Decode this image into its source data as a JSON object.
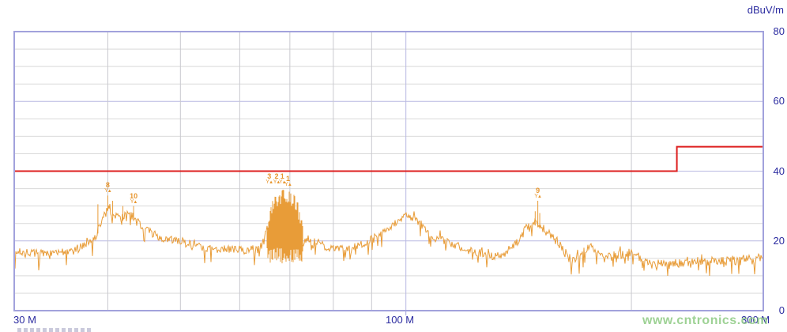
{
  "watermark": "www.cntronics.com",
  "chart_data": {
    "type": "line",
    "title": "",
    "xlabel": "",
    "ylabel": "dBuV/m",
    "legend": "none",
    "x_axis": {
      "scale": "log",
      "unit": "MHz",
      "min_mhz": 30,
      "max_mhz": 300,
      "tick_labels": [
        "30 M",
        "100 M",
        "300 M"
      ],
      "gridlines_mhz": [
        40,
        50,
        60,
        70,
        80,
        90,
        100,
        200
      ],
      "major_gridlines_mhz": [
        100
      ]
    },
    "y_axis": {
      "min": 0,
      "max": 80,
      "major_step": 20,
      "minor_step": 5,
      "tick_values": [
        80,
        60,
        40,
        20,
        0
      ],
      "tick_labels": [
        "80",
        "60",
        "40",
        "20",
        "0"
      ]
    },
    "limit_line": {
      "name": "emission-limit",
      "color": "#dd1f1f",
      "segments": [
        {
          "from_mhz": 30,
          "to_mhz": 230,
          "level_dbuv_m": 40
        },
        {
          "from_mhz": 230,
          "to_mhz": 300,
          "level_dbuv_m": 47
        }
      ]
    },
    "trace": {
      "name": "measured-emission",
      "color": "#e89c38",
      "points_mhz_db_noise": [
        [
          30,
          17,
          1.0
        ],
        [
          33,
          16.3,
          1.1
        ],
        [
          36,
          17,
          1.3
        ],
        [
          38.5,
          21.5,
          1.5
        ],
        [
          40,
          29.5,
          1.6
        ],
        [
          41.5,
          26.5,
          1.5
        ],
        [
          43,
          27.5,
          1.4
        ],
        [
          44.5,
          23.5,
          1.3
        ],
        [
          47,
          21,
          1.2
        ],
        [
          50,
          20,
          1.1
        ],
        [
          54,
          17.7,
          1.1
        ],
        [
          58,
          17.6,
          1.1
        ],
        [
          61,
          17.4,
          1.2
        ],
        [
          63.5,
          17.3,
          1.5
        ],
        [
          65,
          21,
          2.0
        ],
        [
          67,
          23.5,
          2.2
        ],
        [
          69,
          23.5,
          2.2
        ],
        [
          71,
          22.5,
          2.2
        ],
        [
          73,
          20.5,
          2.0
        ],
        [
          75,
          19.8,
          1.4
        ],
        [
          78,
          18.5,
          1.2
        ],
        [
          81,
          17.5,
          1.1
        ],
        [
          85,
          18,
          1.1
        ],
        [
          89,
          20,
          1.1
        ],
        [
          93,
          22,
          1.1
        ],
        [
          96,
          24.5,
          1.1
        ],
        [
          99,
          27,
          1.0
        ],
        [
          101,
          27.2,
          1.0
        ],
        [
          104,
          25.5,
          1.1
        ],
        [
          109,
          21,
          1.1
        ],
        [
          114,
          19.5,
          1.1
        ],
        [
          118,
          18.5,
          1.2
        ],
        [
          122,
          17,
          1.2
        ],
        [
          127,
          16.2,
          1.2
        ],
        [
          131,
          15.5,
          1.2
        ],
        [
          136,
          16.5,
          1.3
        ],
        [
          140,
          19,
          1.3
        ],
        [
          144,
          23,
          1.4
        ],
        [
          147,
          24.5,
          1.5
        ],
        [
          149,
          25.5,
          1.5
        ],
        [
          151,
          24.5,
          1.4
        ],
        [
          154,
          22.5,
          1.3
        ],
        [
          157,
          21.5,
          1.2
        ],
        [
          161,
          18.5,
          1.3
        ],
        [
          165,
          15,
          1.3
        ],
        [
          168,
          14.2,
          1.3
        ],
        [
          172,
          16.5,
          1.2
        ],
        [
          176,
          19,
          1.2
        ],
        [
          180,
          17.5,
          1.3
        ],
        [
          184,
          15,
          1.3
        ],
        [
          188,
          15.5,
          1.3
        ],
        [
          193,
          16.2,
          1.3
        ],
        [
          200,
          16.5,
          1.3
        ],
        [
          204,
          15.5,
          1.4
        ],
        [
          207,
          14.3,
          1.4
        ],
        [
          214,
          13,
          1.4
        ],
        [
          221,
          13.2,
          1.4
        ],
        [
          228,
          13.5,
          1.4
        ],
        [
          240,
          13.8,
          1.5
        ],
        [
          252,
          14,
          1.5
        ],
        [
          265,
          14.2,
          1.5
        ],
        [
          280,
          14.5,
          1.5
        ],
        [
          300,
          14.8,
          1.5
        ]
      ]
    },
    "burst_cluster": {
      "from_mhz": 65.3,
      "to_mhz": 72.8,
      "peak_top_db": 35.5,
      "edge_top_db": 26,
      "bottom_db": 13.5
    },
    "spikes_mhz_top_db": [
      [
        38.8,
        30.5
      ],
      [
        40,
        33
      ],
      [
        40.6,
        31.5
      ],
      [
        41.9,
        30
      ],
      [
        43.3,
        30
      ],
      [
        148.8,
        28.5
      ],
      [
        150,
        31.5
      ],
      [
        150.9,
        28
      ]
    ],
    "markers": [
      {
        "label": "8",
        "mhz": 40.0,
        "db": 33.0
      },
      {
        "label": "10",
        "mhz": 43.3,
        "db": 30.0
      },
      {
        "label": "3",
        "mhz": 65.7,
        "db": 35.5
      },
      {
        "label": "2",
        "mhz": 67.2,
        "db": 35.5
      },
      {
        "label": "1",
        "mhz": 68.4,
        "db": 35.5
      },
      {
        "label": "1",
        "mhz": 69.6,
        "db": 35.0
      },
      {
        "label": "9",
        "mhz": 150.0,
        "db": 31.5
      }
    ],
    "marker_symbol": "Y▲",
    "plot_colors": {
      "border": "#a2a2dc",
      "major_grid": "#b9b9e2",
      "minor_grid": "#d9d9d9",
      "vertical_grid": "#c9c9cf",
      "label_text": "#2b2ba0"
    }
  }
}
